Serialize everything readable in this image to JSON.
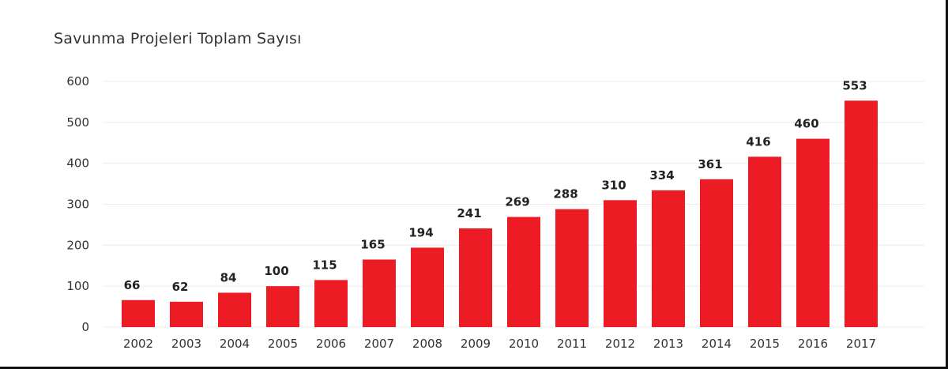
{
  "chart_data": {
    "type": "bar",
    "title": "Savunma Projeleri Toplam Sayısı",
    "categories": [
      "2002",
      "2003",
      "2004",
      "2005",
      "2006",
      "2007",
      "2008",
      "2009",
      "2010",
      "2011",
      "2012",
      "2013",
      "2014",
      "2015",
      "2016",
      "2017"
    ],
    "values": [
      66,
      62,
      84,
      100,
      115,
      165,
      194,
      241,
      269,
      288,
      310,
      334,
      361,
      416,
      460,
      553
    ],
    "yticks": [
      "0",
      "100",
      "200",
      "300",
      "400",
      "500",
      "600"
    ],
    "ylim": [
      0,
      600
    ],
    "grid": true,
    "bar_color": "#ed1c24",
    "grid_color": "#ececec"
  }
}
